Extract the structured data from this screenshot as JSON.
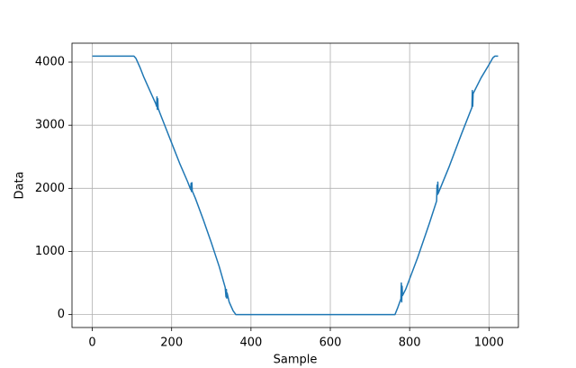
{
  "chart_data": {
    "type": "line",
    "x_label": "Sample",
    "y_label": "Data",
    "x": [
      0,
      105,
      110,
      120,
      130,
      140,
      150,
      160,
      162,
      163,
      164,
      165,
      166,
      170,
      180,
      200,
      220,
      240,
      248,
      249,
      250,
      251,
      252,
      260,
      280,
      300,
      320,
      335,
      337,
      338,
      339,
      340,
      345,
      355,
      362,
      400,
      600,
      763,
      770,
      778,
      779,
      780,
      781,
      782,
      790,
      820,
      850,
      868,
      869,
      870,
      871,
      872,
      900,
      930,
      955,
      957,
      958,
      959,
      960,
      980,
      1000,
      1010,
      1015,
      1023
    ],
    "series": [
      {
        "color": "#1f77b4",
        "values": [
          4095,
          4095,
          4060,
          3920,
          3760,
          3620,
          3480,
          3340,
          3300,
          3450,
          3250,
          3420,
          3270,
          3200,
          3040,
          2720,
          2400,
          2110,
          1980,
          2080,
          1950,
          2090,
          1960,
          1840,
          1500,
          1140,
          760,
          430,
          280,
          400,
          260,
          340,
          200,
          60,
          0,
          0,
          0,
          0,
          110,
          250,
          500,
          200,
          450,
          300,
          400,
          900,
          1450,
          1800,
          2050,
          1900,
          2100,
          1920,
          2350,
          2850,
          3250,
          3280,
          3550,
          3300,
          3500,
          3750,
          3960,
          4070,
          4095,
          4095
        ]
      }
    ],
    "xlim": [
      -51.15,
      1074.15
    ],
    "ylim": [
      -204.75,
      4299.75
    ],
    "xticks": [
      0,
      200,
      400,
      600,
      800,
      1000
    ],
    "yticks": [
      0,
      1000,
      2000,
      3000,
      4000
    ],
    "grid": true
  }
}
